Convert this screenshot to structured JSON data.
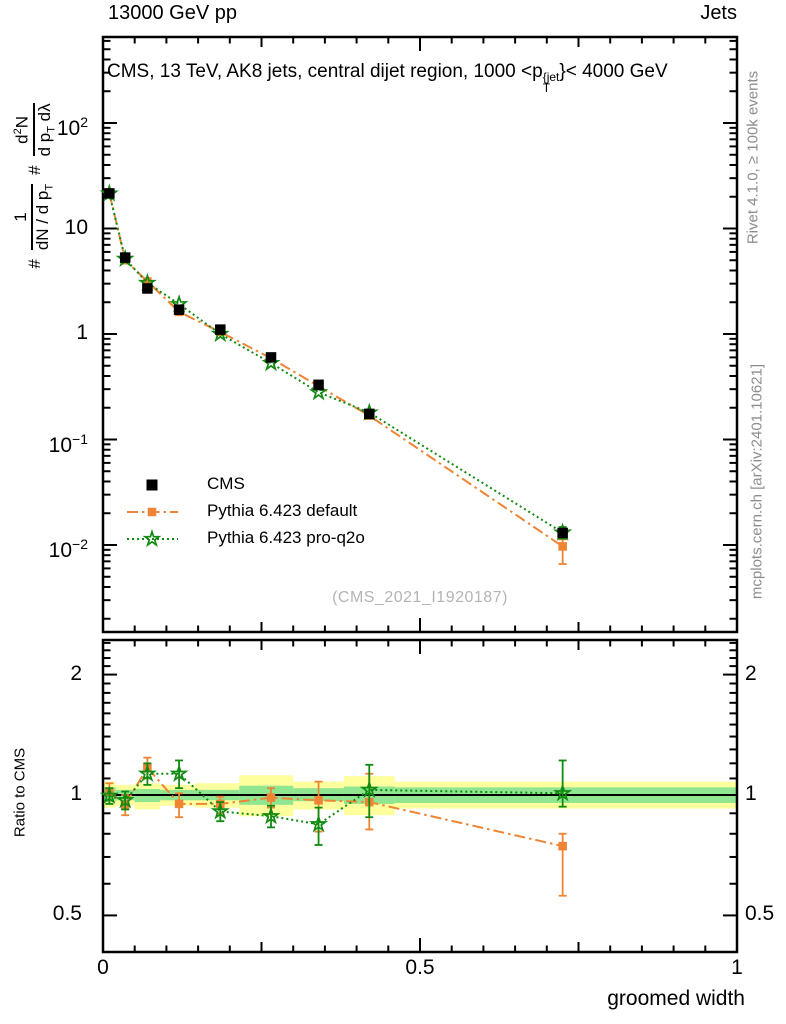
{
  "header": {
    "left": "13000 GeV pp",
    "right": "Jets"
  },
  "inner_title": {
    "prefix": "CMS, 13 TeV, AK8 jets, central dijet region, 1000 <p",
    "sup": "{jet",
    "sub": "T",
    "suffix": "}< 4000 GeV"
  },
  "ylabel_parts": {
    "hash1": "#",
    "frac1_num": "1",
    "frac1_den_pre": "dN / d p",
    "frac1_den_sub": "T",
    "hash2": "#",
    "frac2_num_pre": "d",
    "frac2_num_sup": "2",
    "frac2_num_post": "N",
    "frac2_den_pre": "d p",
    "frac2_den_sub": "T",
    "frac2_den_post": " dλ"
  },
  "legend": [
    {
      "label": "CMS",
      "marker": "black-filled-square",
      "line": "none"
    },
    {
      "label": "Pythia 6.423 default",
      "marker": "orange-filled-square",
      "line": "dash-dot"
    },
    {
      "label": "Pythia 6.423 pro-q2o",
      "marker": "green-open-star",
      "line": "dotted"
    }
  ],
  "watermark": "(CMS_2021_I1920187)",
  "ratio_ylabel": "Ratio to CMS",
  "xaxis_label": "groomed width",
  "side_notes": {
    "top": "Rivet 4.1.0, ≥ 100k events",
    "bottom": "mcplots.cern.ch [arXiv:2401.10621]"
  },
  "colors": {
    "orange": "#ee8434",
    "green": "#118a11",
    "band_yellow": "#feff9d",
    "band_green": "#90e690",
    "side_text": "#8d8d8d",
    "watermark": "#b4b4b4",
    "black": "#000000"
  },
  "chart_data": {
    "type": "line",
    "title": "CMS, 13 TeV, AK8 jets, central dijet region, 1000 < pT{jet} < 4000 GeV",
    "top_left_label": "13000 GeV pp",
    "top_right_label": "Jets",
    "xlabel": "groomed width",
    "ylabel": "# 1/(dN/dpT) # d2N/(dpT dλ)",
    "legend_position": "middle-left",
    "grid": false,
    "xlim": [
      0,
      1
    ],
    "x": [
      0.01,
      0.035,
      0.07,
      0.12,
      0.185,
      0.265,
      0.34,
      0.42,
      0.725
    ],
    "xticks": [
      {
        "label": "0",
        "v": 0
      },
      {
        "label": "0.5",
        "v": 0.5
      },
      {
        "label": "1",
        "v": 1
      }
    ],
    "main": {
      "yscale": "log",
      "ylim": [
        0.0015,
        650
      ],
      "ytick_values": [
        100,
        10,
        1,
        0.1,
        0.01
      ],
      "ytick_labels": [
        {
          "base": "10",
          "exp": "2"
        },
        {
          "base": "10",
          "exp": ""
        },
        {
          "base": "1",
          "exp": ""
        },
        {
          "base": "10",
          "exp": "−1"
        },
        {
          "base": "10",
          "exp": "−2"
        }
      ],
      "series": [
        {
          "name": "CMS",
          "marker": "filled-square",
          "line": "none",
          "color": "#000000",
          "values": [
            21.5,
            5.3,
            2.7,
            1.7,
            1.1,
            0.6,
            0.33,
            0.175,
            0.013
          ],
          "err_lo": [
            null,
            null,
            null,
            null,
            null,
            null,
            null,
            null,
            null
          ],
          "err_hi": [
            null,
            null,
            null,
            null,
            null,
            null,
            null,
            null,
            null
          ]
        },
        {
          "name": "Pythia 6.423 default",
          "marker": "filled-square",
          "line": "dash-dot",
          "color": "#ee8434",
          "values": [
            21.9,
            5.0,
            3.15,
            1.62,
            1.045,
            0.59,
            0.32,
            0.168,
            0.0097
          ],
          "err_lo": [
            null,
            null,
            null,
            null,
            null,
            null,
            null,
            null,
            0.0066
          ],
          "err_hi": [
            null,
            null,
            null,
            null,
            null,
            null,
            null,
            null,
            0.0113
          ]
        },
        {
          "name": "Pythia 6.423 pro-q2o",
          "marker": "open-star",
          "line": "dotted",
          "color": "#118a11",
          "values": [
            21.4,
            5.15,
            3.05,
            1.92,
            1.0,
            0.53,
            0.28,
            0.18,
            0.0131
          ],
          "err_lo": [
            null,
            null,
            null,
            null,
            null,
            null,
            null,
            null,
            0.0115
          ],
          "err_hi": [
            null,
            null,
            null,
            null,
            null,
            null,
            null,
            null,
            0.0148
          ]
        }
      ]
    },
    "ratio": {
      "yscale": "log",
      "ylim": [
        0.405,
        2.44
      ],
      "ytick_values": [
        2,
        1,
        0.5
      ],
      "ytick_labels": [
        "2",
        "1",
        "0.5"
      ],
      "unity_line": 1,
      "band_edges": [
        0,
        0.02,
        0.05,
        0.09,
        0.145,
        0.215,
        0.3,
        0.38,
        0.46,
        1.0
      ],
      "yellow_lo": [
        0.93,
        0.94,
        0.92,
        0.94,
        0.93,
        0.885,
        0.92,
        0.89,
        0.925
      ],
      "yellow_hi": [
        1.08,
        1.06,
        1.07,
        1.06,
        1.07,
        1.12,
        1.08,
        1.115,
        1.08
      ],
      "green_lo": [
        0.96,
        0.97,
        0.96,
        0.97,
        0.97,
        0.945,
        0.965,
        0.95,
        0.955
      ],
      "green_hi": [
        1.045,
        1.03,
        1.035,
        1.03,
        1.03,
        1.055,
        1.04,
        1.05,
        1.045
      ],
      "series": [
        {
          "name": "Pythia 6.423 default",
          "color": "#ee8434",
          "r": [
            1.02,
            0.945,
            1.17,
            0.95,
            0.95,
            0.985,
            0.97,
            0.96,
            0.745
          ],
          "lo": [
            0.97,
            0.89,
            1.1,
            0.88,
            0.9,
            0.93,
            0.81,
            0.82,
            0.56
          ],
          "hi": [
            1.07,
            1.0,
            1.24,
            1.01,
            0.99,
            1.04,
            1.08,
            1.13,
            0.8
          ]
        },
        {
          "name": "Pythia 6.423 pro-q2o",
          "color": "#118a11",
          "r": [
            0.995,
            0.97,
            1.13,
            1.13,
            0.91,
            0.885,
            0.845,
            1.03,
            1.01
          ],
          "lo": [
            0.95,
            0.92,
            1.06,
            1.04,
            0.86,
            0.83,
            0.75,
            0.88,
            0.935
          ],
          "hi": [
            1.04,
            1.02,
            1.2,
            1.22,
            0.96,
            0.94,
            0.93,
            1.19,
            1.22
          ]
        }
      ]
    }
  }
}
